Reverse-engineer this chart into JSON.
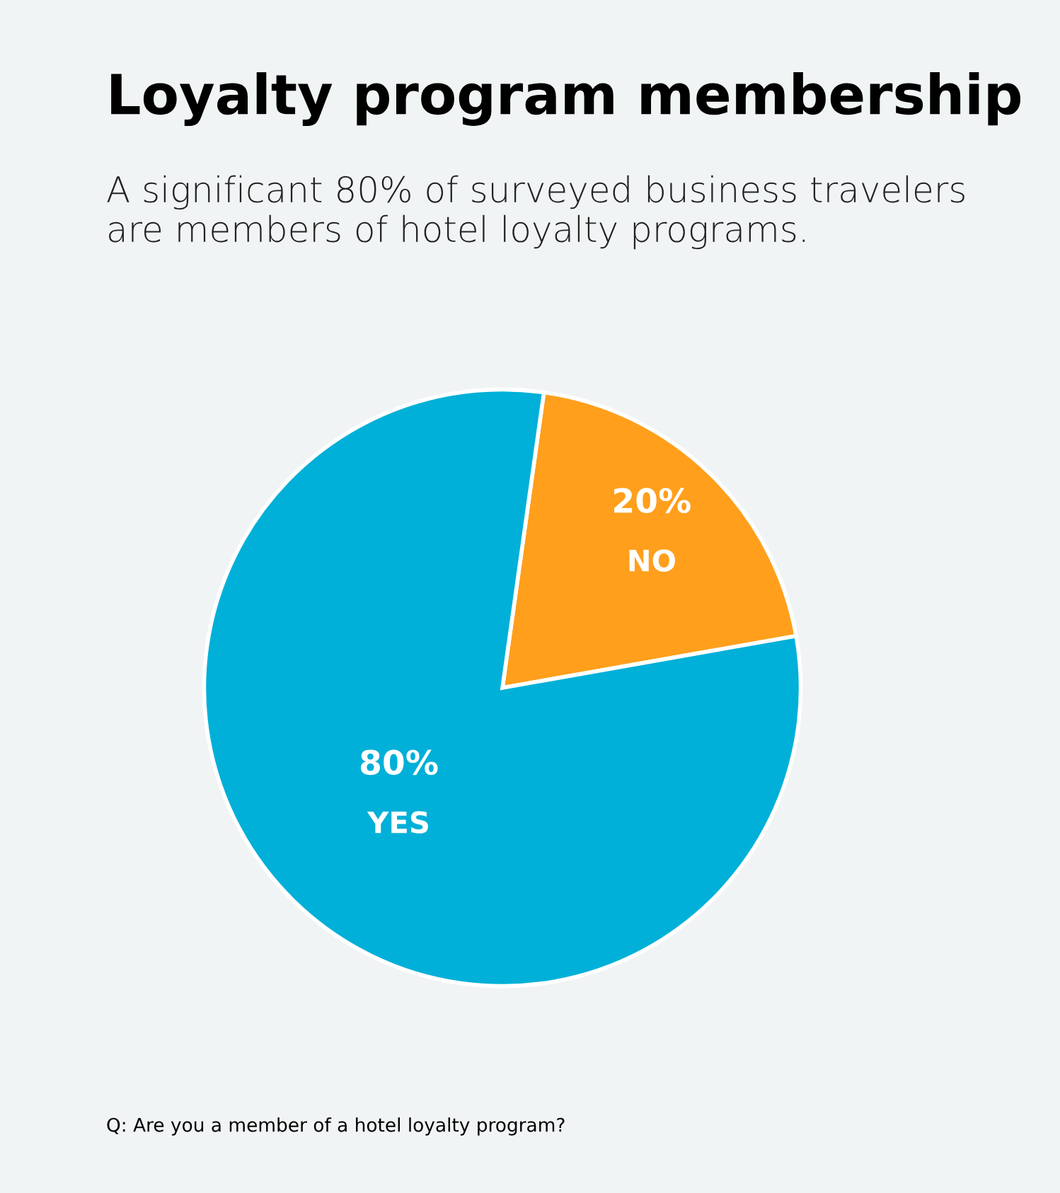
{
  "chart_data": {
    "type": "pie",
    "title": "Loyalty program membership",
    "subtitle": "A significant 80% of surveyed business travelers\nare members of hotel loyalty programs.",
    "categories": [
      "NO",
      "YES"
    ],
    "values": [
      20,
      80
    ],
    "colors": [
      "#ff9f1c",
      "#00b0d8"
    ],
    "value_labels": [
      "20%",
      "80%"
    ],
    "annotations": [
      "Q: Are you a member of a hotel loyalty program?"
    ]
  }
}
